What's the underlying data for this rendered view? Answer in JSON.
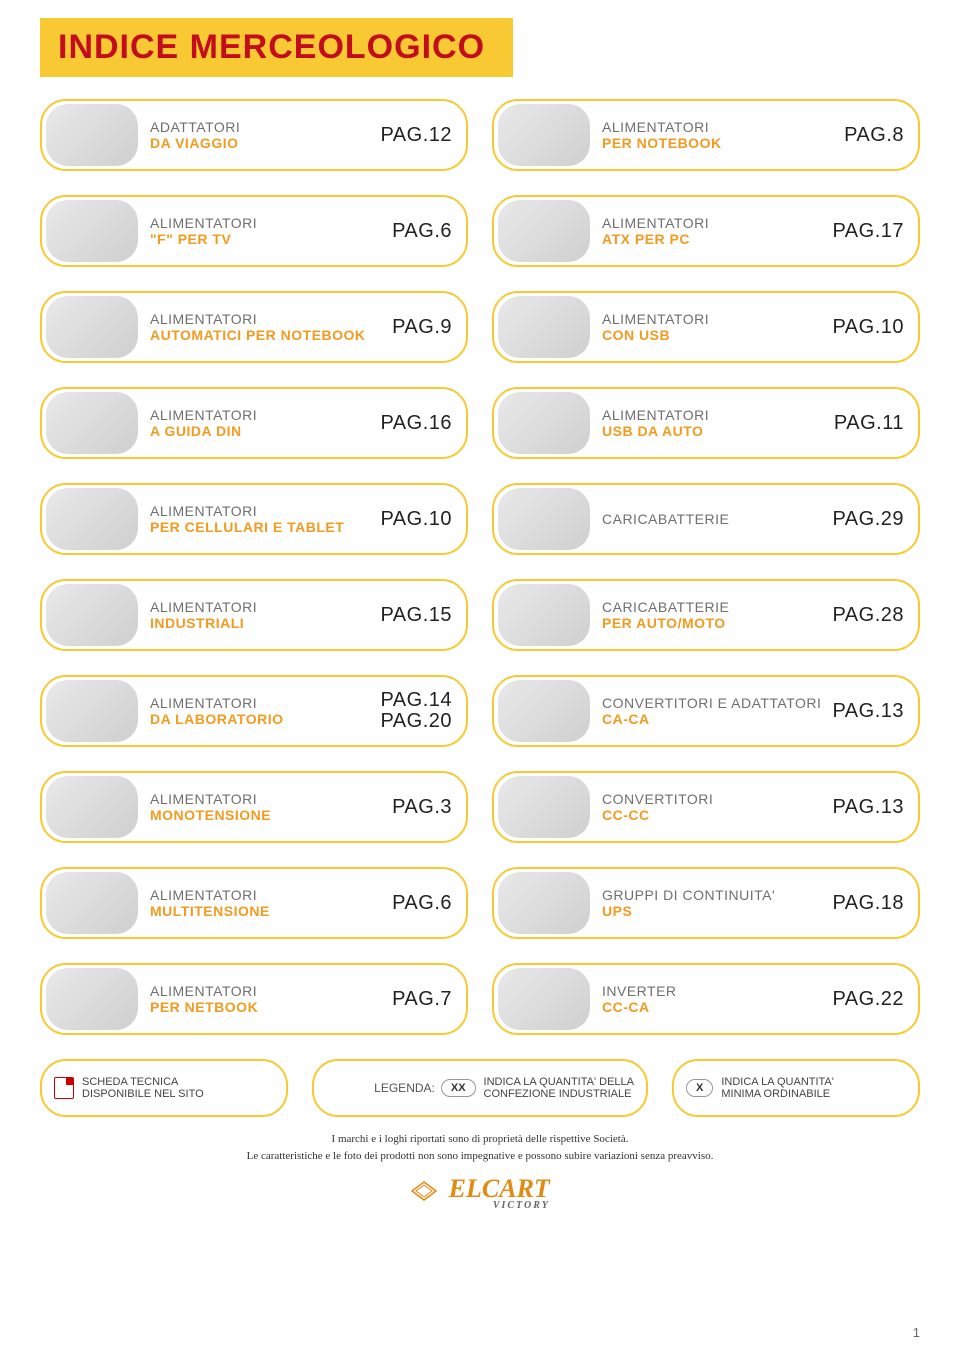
{
  "colors": {
    "border": "#f8c932",
    "title_bg": "#f8c932",
    "title_text": "#c30d1f",
    "label_grey": "#6f6f6f",
    "label_orange": "#f39a1f",
    "page_ref": "#222222",
    "logo": "#e28b12"
  },
  "title": "INDICE MERCEOLOGICO",
  "rows": [
    [
      {
        "line1": "ADATTATORI",
        "line2": "DA VIAGGIO",
        "page": "PAG.12"
      },
      {
        "line1": "ALIMENTATORI",
        "line2": "PER NOTEBOOK",
        "page": "PAG.8"
      }
    ],
    [
      {
        "line1": "ALIMENTATORI",
        "line2": "\"F\" PER TV",
        "page": "PAG.6"
      },
      {
        "line1": "ALIMENTATORI",
        "line2": "ATX PER PC",
        "page": "PAG.17"
      }
    ],
    [
      {
        "line1": "ALIMENTATORI",
        "line2": "AUTOMATICI PER NOTEBOOK",
        "page": "PAG.9"
      },
      {
        "line1": "ALIMENTATORI",
        "line2": "CON USB",
        "page": "PAG.10"
      }
    ],
    [
      {
        "line1": "ALIMENTATORI",
        "line2": "A GUIDA DIN",
        "page": "PAG.16"
      },
      {
        "line1": "ALIMENTATORI",
        "line2": "USB DA AUTO",
        "page": "PAG.11"
      }
    ],
    [
      {
        "line1": "ALIMENTATORI",
        "line2": "PER CELLULARI E TABLET",
        "page": "PAG.10"
      },
      {
        "line1": "CARICABATTERIE",
        "line2": "",
        "page": "PAG.29"
      }
    ],
    [
      {
        "line1": "ALIMENTATORI",
        "line2": "INDUSTRIALI",
        "page": "PAG.15"
      },
      {
        "line1": "CARICABATTERIE",
        "line2": "PER AUTO/MOTO",
        "page": "PAG.28"
      }
    ],
    [
      {
        "line1": "ALIMENTATORI",
        "line2": "DA LABORATORIO",
        "page": "PAG.14\nPAG.20"
      },
      {
        "line1": "CONVERTITORI E ADATTATORI",
        "line2": "CA-CA",
        "page": "PAG.13"
      }
    ],
    [
      {
        "line1": "ALIMENTATORI",
        "line2": "MONOTENSIONE",
        "page": "PAG.3"
      },
      {
        "line1": "CONVERTITORI",
        "line2": "CC-CC",
        "page": "PAG.13"
      }
    ],
    [
      {
        "line1": "ALIMENTATORI",
        "line2": "MULTITENSIONE",
        "page": "PAG.6"
      },
      {
        "line1": "GRUPPI DI CONTINUITA'",
        "line2": "UPS",
        "page": "PAG.18"
      }
    ],
    [
      {
        "line1": "ALIMENTATORI",
        "line2": "PER NETBOOK",
        "page": "PAG.7"
      },
      {
        "line1": "INVERTER",
        "line2": "CC-CA",
        "page": "PAG.22"
      }
    ]
  ],
  "legend": {
    "heading": "LEGENDA:",
    "pdf_text": "SCHEDA TECNICA\nDISPONIBILE NEL SITO",
    "xx_badge": "XX",
    "xx_text": "INDICA LA QUANTITA' DELLA\nCONFEZIONE INDUSTRIALE",
    "x_badge": "X",
    "x_text": "INDICA LA QUANTITA'\nMINIMA ORDINABILE"
  },
  "footnotes": {
    "line1": "I marchi e i loghi riportati sono di proprietà delle rispettive Società.",
    "line2": "Le caratteristiche e le foto dei prodotti non sono impegnative e possono subire variazioni senza preavviso."
  },
  "logo": {
    "name": "ELCART",
    "sub": "VICTORY"
  },
  "page_number": "1"
}
